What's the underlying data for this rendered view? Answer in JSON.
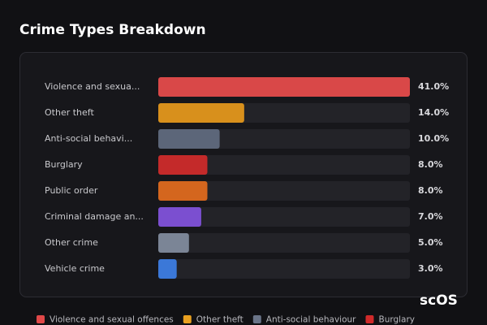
{
  "chart_data": {
    "type": "bar",
    "orientation": "horizontal",
    "title": "Crime Types Breakdown",
    "categories": [
      "Violence and sexua...",
      "Other theft",
      "Anti-social behavi...",
      "Burglary",
      "Public order",
      "Criminal damage an...",
      "Other crime",
      "Vehicle crime"
    ],
    "values": [
      41.0,
      14.0,
      10.0,
      8.0,
      8.0,
      7.0,
      5.0,
      3.0
    ],
    "value_labels": [
      "41.0%",
      "14.0%",
      "10.0%",
      "8.0%",
      "8.0%",
      "7.0%",
      "5.0%",
      "3.0%"
    ],
    "colors": [
      "#d94848",
      "#d8901c",
      "#5c6679",
      "#c42a2a",
      "#d4661e",
      "#7b4fd0",
      "#7b8596",
      "#3b78d8"
    ],
    "xlim": [
      0,
      41
    ],
    "legend": [
      {
        "name": "Violence and sexual offences",
        "color": "#e04848"
      },
      {
        "name": "Other theft",
        "color": "#e8a020"
      },
      {
        "name": "Anti-social behaviour",
        "color": "#6a7488"
      },
      {
        "name": "Burglary",
        "color": "#d02a2a"
      }
    ],
    "watermark": "scOS"
  }
}
